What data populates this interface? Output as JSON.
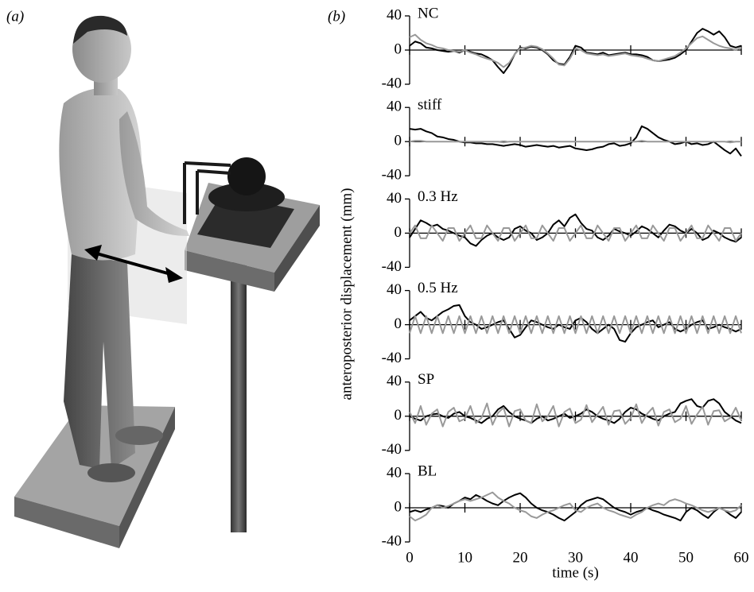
{
  "panel_labels": [
    "(a)",
    "(b)"
  ],
  "ylabel": "anteroposterior displacement (mm)",
  "chart_data": [
    {
      "type": "line",
      "title": "NC",
      "xlim": [
        0,
        60
      ],
      "ylim": [
        -40,
        40
      ],
      "yticks": [
        -40,
        0,
        40
      ],
      "x": [
        0,
        1,
        2,
        3,
        4,
        5,
        6,
        7,
        8,
        9,
        10,
        11,
        12,
        13,
        14,
        15,
        16,
        17,
        18,
        19,
        20,
        21,
        22,
        23,
        24,
        25,
        26,
        27,
        28,
        29,
        30,
        31,
        32,
        33,
        34,
        35,
        36,
        37,
        38,
        39,
        40,
        41,
        42,
        43,
        44,
        45,
        46,
        47,
        48,
        49,
        50,
        51,
        52,
        53,
        54,
        55,
        56,
        57,
        58,
        59,
        60
      ],
      "series": [
        {
          "color": "#000000",
          "values": [
            5,
            10,
            8,
            3,
            2,
            0,
            -1,
            -2,
            -1,
            -3,
            0,
            -2,
            -4,
            -5,
            -8,
            -12,
            -20,
            -27,
            -18,
            -5,
            3,
            2,
            4,
            3,
            0,
            -5,
            -12,
            -16,
            -17,
            -8,
            5,
            3,
            -3,
            -4,
            -5,
            -3,
            -6,
            -5,
            -4,
            -3,
            -5,
            -5,
            -6,
            -8,
            -12,
            -13,
            -12,
            -11,
            -9,
            -5,
            0,
            10,
            20,
            25,
            22,
            18,
            22,
            15,
            5,
            3,
            5
          ]
        },
        {
          "color": "#999999",
          "values": [
            15,
            18,
            12,
            8,
            6,
            3,
            2,
            0,
            -1,
            -2,
            0,
            -3,
            -5,
            -8,
            -10,
            -12,
            -15,
            -20,
            -15,
            -5,
            2,
            3,
            5,
            4,
            1,
            -4,
            -10,
            -17,
            -18,
            -10,
            2,
            0,
            -4,
            -5,
            -6,
            -5,
            -7,
            -6,
            -5,
            -4,
            -6,
            -7,
            -8,
            -10,
            -12,
            -13,
            -11,
            -9,
            -7,
            -3,
            2,
            8,
            14,
            16,
            12,
            8,
            5,
            3,
            2,
            0,
            3
          ]
        }
      ]
    },
    {
      "type": "line",
      "title": "stiff",
      "xlim": [
        0,
        60
      ],
      "ylim": [
        -40,
        40
      ],
      "yticks": [
        -40,
        0,
        40
      ],
      "x": [
        0,
        1,
        2,
        3,
        4,
        5,
        6,
        7,
        8,
        9,
        10,
        11,
        12,
        13,
        14,
        15,
        16,
        17,
        18,
        19,
        20,
        21,
        22,
        23,
        24,
        25,
        26,
        27,
        28,
        29,
        30,
        31,
        32,
        33,
        34,
        35,
        36,
        37,
        38,
        39,
        40,
        41,
        42,
        43,
        44,
        45,
        46,
        47,
        48,
        49,
        50,
        51,
        52,
        53,
        54,
        55,
        56,
        57,
        58,
        59,
        60
      ],
      "series": [
        {
          "color": "#000000",
          "values": [
            15,
            14,
            15,
            12,
            10,
            6,
            5,
            3,
            2,
            0,
            -1,
            -1,
            -2,
            -2,
            -3,
            -3,
            -4,
            -5,
            -4,
            -3,
            -4,
            -6,
            -5,
            -4,
            -5,
            -6,
            -5,
            -7,
            -6,
            -5,
            -8,
            -9,
            -10,
            -9,
            -7,
            -6,
            -3,
            -2,
            -5,
            -4,
            -2,
            5,
            18,
            15,
            10,
            5,
            2,
            0,
            -3,
            -2,
            0,
            -3,
            -2,
            -4,
            -3,
            0,
            -5,
            -10,
            -14,
            -8,
            -17
          ]
        },
        {
          "color": "#999999",
          "values": [
            0,
            1,
            1,
            0,
            0,
            0,
            0,
            0,
            0,
            0,
            0,
            0,
            0,
            0,
            0,
            0,
            0,
            -1,
            0,
            0,
            0,
            0,
            0,
            0,
            0,
            0,
            0,
            0,
            0,
            0,
            0,
            0,
            0,
            0,
            0,
            0,
            0,
            0,
            0,
            0,
            0,
            0,
            1,
            0,
            0,
            0,
            0,
            0,
            0,
            0,
            0,
            0,
            0,
            0,
            0,
            0,
            0,
            0,
            -1,
            0,
            0
          ]
        }
      ]
    },
    {
      "type": "line",
      "title": "0.3 Hz",
      "xlim": [
        0,
        60
      ],
      "ylim": [
        -40,
        40
      ],
      "yticks": [
        -40,
        0,
        40
      ],
      "x": [
        0,
        1,
        2,
        3,
        4,
        5,
        6,
        7,
        8,
        9,
        10,
        11,
        12,
        13,
        14,
        15,
        16,
        17,
        18,
        19,
        20,
        21,
        22,
        23,
        24,
        25,
        26,
        27,
        28,
        29,
        30,
        31,
        32,
        33,
        34,
        35,
        36,
        37,
        38,
        39,
        40,
        41,
        42,
        43,
        44,
        45,
        46,
        47,
        48,
        49,
        50,
        51,
        52,
        53,
        54,
        55,
        56,
        57,
        58,
        59,
        60
      ],
      "series": [
        {
          "color": "#000000",
          "values": [
            -5,
            5,
            15,
            12,
            8,
            10,
            5,
            3,
            0,
            -3,
            -5,
            -12,
            -15,
            -8,
            -3,
            0,
            -5,
            -8,
            -5,
            5,
            8,
            3,
            0,
            -8,
            -5,
            0,
            10,
            15,
            8,
            18,
            22,
            12,
            5,
            3,
            -5,
            -8,
            -3,
            5,
            2,
            0,
            -3,
            2,
            8,
            5,
            0,
            -5,
            3,
            10,
            8,
            3,
            0,
            5,
            0,
            -8,
            -5,
            3,
            0,
            -5,
            -8,
            -10,
            -5
          ]
        },
        {
          "color": "#999999",
          "values": [
            0,
            9,
            -6,
            -6,
            9,
            0,
            -9,
            6,
            6,
            -9,
            0,
            9,
            -6,
            -6,
            9,
            0,
            -9,
            6,
            6,
            -9,
            0,
            9,
            -6,
            -6,
            9,
            0,
            -9,
            6,
            6,
            -9,
            0,
            9,
            -6,
            -6,
            9,
            0,
            -9,
            6,
            6,
            -9,
            0,
            9,
            -6,
            -6,
            9,
            0,
            -9,
            6,
            6,
            -9,
            0,
            9,
            -6,
            -6,
            9,
            0,
            -9,
            6,
            6,
            -9,
            0
          ]
        }
      ]
    },
    {
      "type": "line",
      "title": "0.5 Hz",
      "xlim": [
        0,
        60
      ],
      "ylim": [
        -40,
        40
      ],
      "yticks": [
        -40,
        0,
        40
      ],
      "x": [
        0,
        1,
        2,
        3,
        4,
        5,
        6,
        7,
        8,
        9,
        10,
        11,
        12,
        13,
        14,
        15,
        16,
        17,
        18,
        19,
        20,
        21,
        22,
        23,
        24,
        25,
        26,
        27,
        28,
        29,
        30,
        31,
        32,
        33,
        34,
        35,
        36,
        37,
        38,
        39,
        40,
        41,
        42,
        43,
        44,
        45,
        46,
        47,
        48,
        49,
        50,
        51,
        52,
        53,
        54,
        55,
        56,
        57,
        58,
        59,
        60
      ],
      "series": [
        {
          "color": "#000000",
          "values": [
            5,
            10,
            15,
            8,
            5,
            10,
            15,
            18,
            22,
            23,
            10,
            3,
            0,
            -5,
            -3,
            0,
            3,
            5,
            -5,
            -15,
            -12,
            -3,
            5,
            3,
            0,
            -3,
            -5,
            0,
            -3,
            -5,
            5,
            8,
            3,
            -5,
            -10,
            -5,
            0,
            -5,
            -18,
            -20,
            -10,
            -3,
            0,
            3,
            5,
            -3,
            0,
            3,
            -5,
            -8,
            -5,
            0,
            3,
            5,
            -5,
            -3,
            0,
            -3,
            -5,
            -8,
            -5
          ]
        },
        {
          "color": "#999999",
          "values": [
            -10,
            10,
            -10,
            10,
            -10,
            10,
            -10,
            10,
            -10,
            10,
            -10,
            10,
            -10,
            10,
            -10,
            10,
            -10,
            10,
            -10,
            10,
            -10,
            10,
            -10,
            10,
            -10,
            10,
            -10,
            10,
            -10,
            10,
            -10,
            10,
            -10,
            10,
            -10,
            10,
            -10,
            10,
            -10,
            10,
            -10,
            10,
            -10,
            10,
            -10,
            10,
            -10,
            10,
            -10,
            10,
            -10,
            10,
            -10,
            10,
            -10,
            10,
            -10,
            10,
            -10,
            10,
            -10
          ]
        }
      ]
    },
    {
      "type": "line",
      "title": "SP",
      "xlim": [
        0,
        60
      ],
      "ylim": [
        -40,
        40
      ],
      "yticks": [
        -40,
        0,
        40
      ],
      "x": [
        0,
        1,
        2,
        3,
        4,
        5,
        6,
        7,
        8,
        9,
        10,
        11,
        12,
        13,
        14,
        15,
        16,
        17,
        18,
        19,
        20,
        21,
        22,
        23,
        24,
        25,
        26,
        27,
        28,
        29,
        30,
        31,
        32,
        33,
        34,
        35,
        36,
        37,
        38,
        39,
        40,
        41,
        42,
        43,
        44,
        45,
        46,
        47,
        48,
        49,
        50,
        51,
        52,
        53,
        54,
        55,
        56,
        57,
        58,
        59,
        60
      ],
      "series": [
        {
          "color": "#000000",
          "values": [
            0,
            -3,
            -5,
            0,
            2,
            3,
            0,
            -2,
            3,
            5,
            0,
            -2,
            -5,
            -8,
            -3,
            0,
            8,
            12,
            5,
            0,
            -3,
            -5,
            -8,
            -3,
            0,
            -5,
            -3,
            0,
            3,
            -2,
            0,
            3,
            8,
            5,
            0,
            -3,
            -5,
            -8,
            -3,
            5,
            10,
            8,
            3,
            0,
            -3,
            -5,
            0,
            3,
            5,
            15,
            18,
            20,
            12,
            10,
            18,
            20,
            15,
            5,
            0,
            -5,
            -8
          ]
        },
        {
          "color": "#999999",
          "values": [
            5,
            -8,
            12,
            -10,
            3,
            8,
            -12,
            5,
            10,
            -6,
            -3,
            12,
            -8,
            -2,
            15,
            -10,
            4,
            10,
            -12,
            6,
            8,
            -5,
            -8,
            14,
            -6,
            0,
            12,
            -12,
            5,
            9,
            -8,
            -4,
            13,
            -7,
            2,
            11,
            -10,
            6,
            7,
            -9,
            -2,
            14,
            -8,
            3,
            10,
            -11,
            5,
            8,
            -7,
            -3,
            12,
            -9,
            2,
            11,
            -10,
            6,
            7,
            -6,
            -2,
            10,
            -5
          ]
        }
      ]
    },
    {
      "type": "line",
      "title": "BL",
      "xlabel": "time (s)",
      "xlim": [
        0,
        60
      ],
      "xticks": [
        0,
        10,
        20,
        30,
        40,
        50,
        60
      ],
      "ylim": [
        -40,
        40
      ],
      "yticks": [
        -40,
        0,
        40
      ],
      "x": [
        0,
        1,
        2,
        3,
        4,
        5,
        6,
        7,
        8,
        9,
        10,
        11,
        12,
        13,
        14,
        15,
        16,
        17,
        18,
        19,
        20,
        21,
        22,
        23,
        24,
        25,
        26,
        27,
        28,
        29,
        30,
        31,
        32,
        33,
        34,
        35,
        36,
        37,
        38,
        39,
        40,
        41,
        42,
        43,
        44,
        45,
        46,
        47,
        48,
        49,
        50,
        51,
        52,
        53,
        54,
        55,
        56,
        57,
        58,
        59,
        60
      ],
      "series": [
        {
          "color": "#000000",
          "values": [
            -5,
            -3,
            -5,
            -2,
            0,
            3,
            2,
            0,
            5,
            8,
            12,
            10,
            15,
            12,
            8,
            5,
            3,
            8,
            12,
            15,
            17,
            12,
            5,
            0,
            -3,
            -5,
            -8,
            -12,
            -15,
            -10,
            -5,
            3,
            8,
            10,
            12,
            10,
            5,
            0,
            -3,
            -5,
            -8,
            -5,
            -3,
            0,
            -3,
            -5,
            -8,
            -10,
            -12,
            -15,
            -5,
            0,
            -3,
            -8,
            -12,
            -5,
            0,
            -3,
            -8,
            -12,
            -5
          ]
        },
        {
          "color": "#999999",
          "values": [
            -10,
            -15,
            -12,
            -8,
            0,
            3,
            0,
            2,
            5,
            8,
            10,
            8,
            10,
            12,
            15,
            18,
            12,
            8,
            5,
            0,
            -3,
            -5,
            -10,
            -12,
            -8,
            -5,
            -3,
            0,
            3,
            5,
            -3,
            -5,
            0,
            3,
            5,
            0,
            -3,
            -5,
            -8,
            -10,
            -12,
            -8,
            -5,
            0,
            3,
            5,
            3,
            8,
            10,
            8,
            5,
            3,
            0,
            -3,
            -5,
            -3,
            0,
            -3,
            -5,
            -3,
            3
          ]
        }
      ]
    }
  ]
}
